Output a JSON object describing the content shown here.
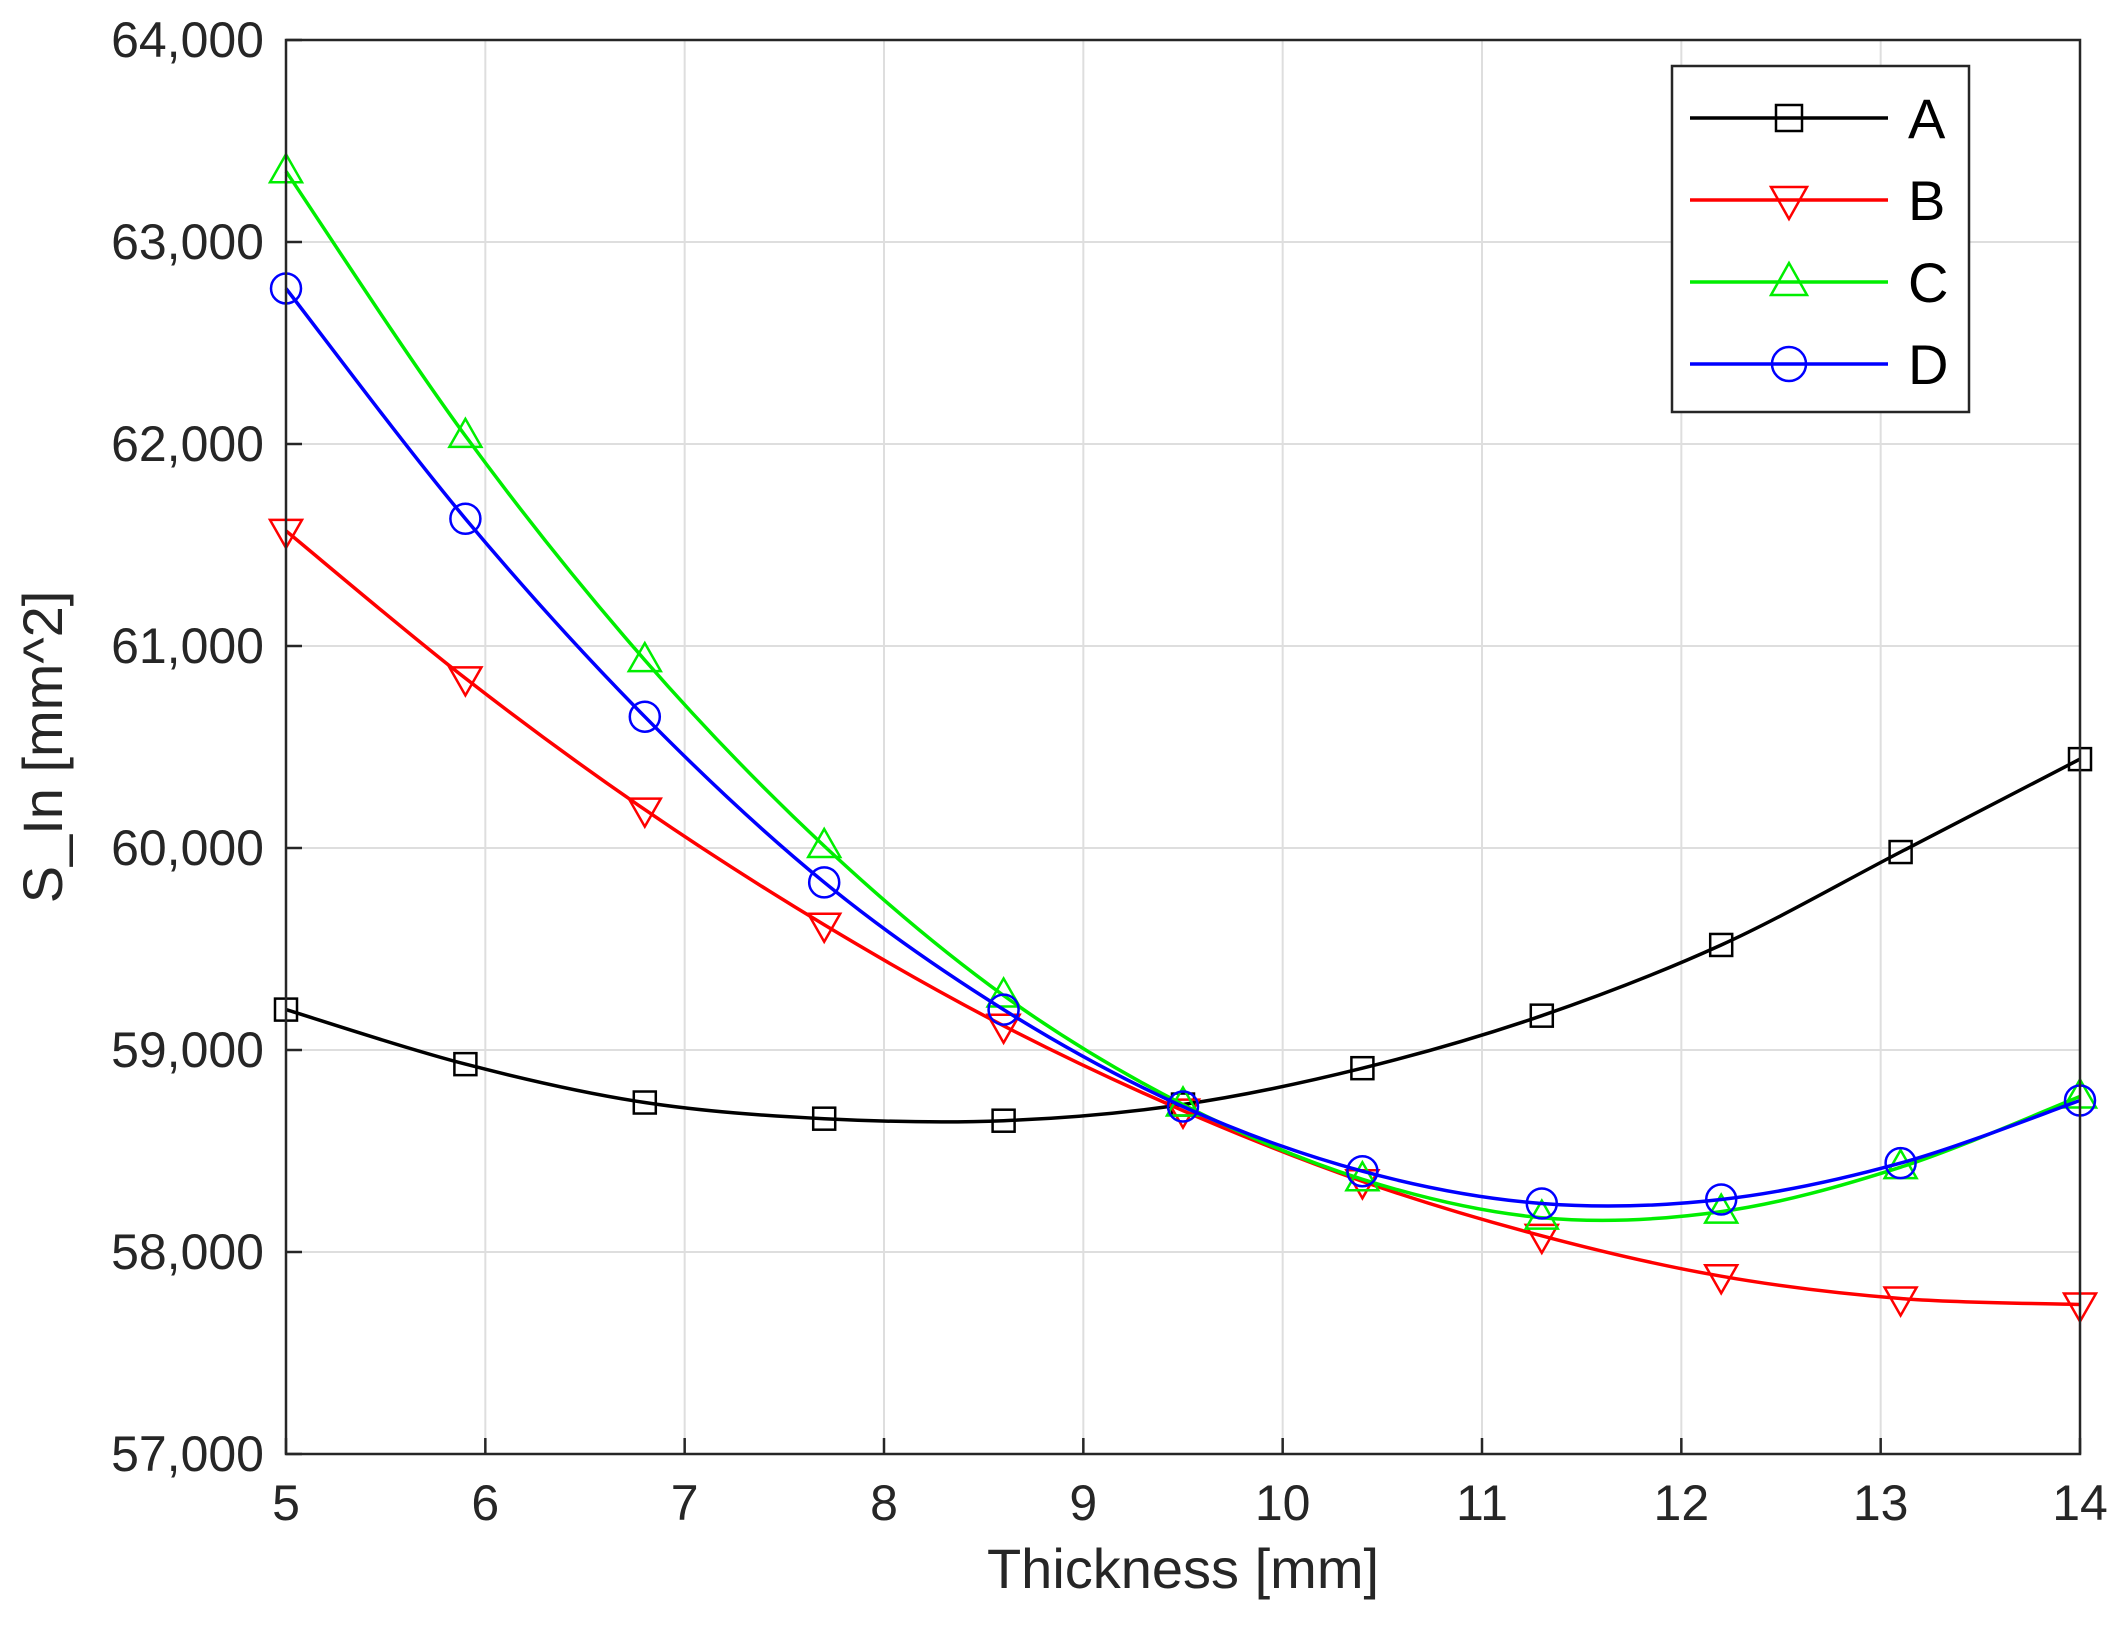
{
  "chart_data": {
    "type": "line",
    "title": "",
    "xlabel": "Thickness [mm]",
    "ylabel": "S_In [mm^2]",
    "xlim": [
      5,
      14
    ],
    "ylim": [
      57000,
      64000
    ],
    "grid": true,
    "legend_position": "top-right",
    "x_ticks": [
      5,
      6,
      7,
      8,
      9,
      10,
      11,
      12,
      13,
      14
    ],
    "x_tick_labels": [
      "5",
      "6",
      "7",
      "8",
      "9",
      "10",
      "11",
      "12",
      "13",
      "14"
    ],
    "y_ticks": [
      57000,
      58000,
      59000,
      60000,
      61000,
      62000,
      63000,
      64000
    ],
    "y_tick_labels": [
      "57,000",
      "58,000",
      "59,000",
      "60,000",
      "61,000",
      "62,000",
      "63,000",
      "64,000"
    ],
    "x": [
      5,
      5.9,
      6.8,
      7.7,
      8.6,
      9.5,
      10.4,
      11.3,
      12.2,
      13.1,
      14
    ],
    "series": [
      {
        "name": "A",
        "color": "#000000",
        "marker": "square",
        "values": [
          59200,
          58930,
          58740,
          58660,
          58650,
          58730,
          58910,
          59170,
          59520,
          59980,
          60440
        ]
      },
      {
        "name": "B",
        "color": "#ff0000",
        "marker": "triangle-down",
        "values": [
          61570,
          60840,
          60190,
          59620,
          59120,
          58700,
          58350,
          58080,
          57880,
          57770,
          57740
        ]
      },
      {
        "name": "C",
        "color": "#00ee00",
        "marker": "triangle-up",
        "values": [
          63350,
          62040,
          60930,
          60010,
          59270,
          58730,
          58360,
          58170,
          58200,
          58420,
          58770
        ]
      },
      {
        "name": "D",
        "color": "#0000ff",
        "marker": "circle",
        "values": [
          62770,
          61630,
          60650,
          59830,
          59200,
          58720,
          58400,
          58240,
          58260,
          58440,
          58750
        ]
      }
    ]
  }
}
